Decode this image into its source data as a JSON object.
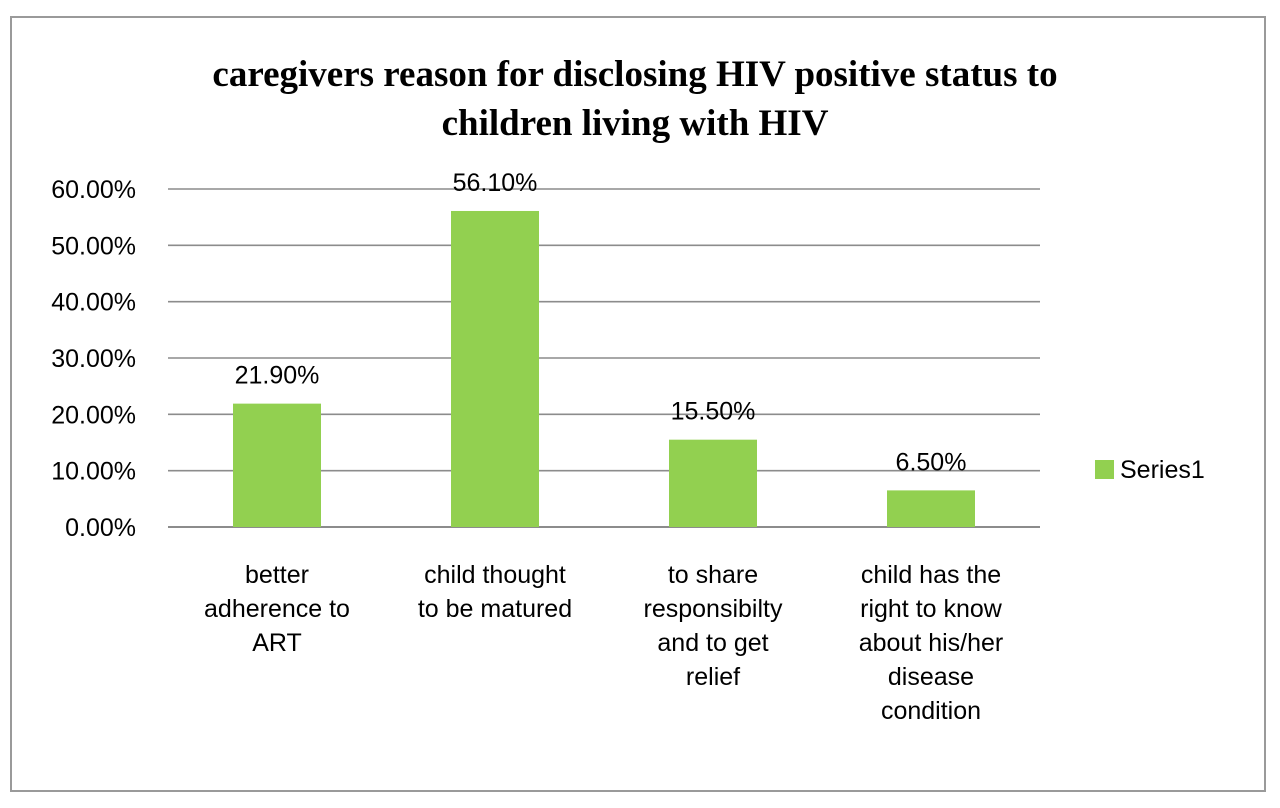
{
  "chart_data": {
    "type": "bar",
    "title": "caregivers reason for disclosing HIV positive status to children living with HIV",
    "title_lines": [
      "caregivers reason for disclosing HIV positive status to",
      "children living with HIV"
    ],
    "xlabel": "",
    "ylabel": "",
    "ylim": [
      0,
      0.6
    ],
    "y_ticks": [
      "0.00%",
      "10.00%",
      "20.00%",
      "30.00%",
      "40.00%",
      "50.00%",
      "60.00%"
    ],
    "grid": true,
    "legend_position": "right",
    "bar_color": "#92d050",
    "categories": [
      "better adherence to ART",
      "child thought to be matured",
      "to share responsibilty and to get relief",
      "child has the right to know about his/her disease condition"
    ],
    "category_lines": [
      [
        "better",
        "adherence to",
        "ART"
      ],
      [
        "child thought",
        "to be matured"
      ],
      [
        "to share",
        "responsibilty",
        "and to get",
        "relief"
      ],
      [
        "child has the",
        "right to know",
        "about his/her",
        "disease",
        "condition"
      ]
    ],
    "series": [
      {
        "name": "Series1",
        "values": [
          0.219,
          0.561,
          0.155,
          0.065
        ],
        "labels": [
          "21.90%",
          "56.10%",
          "15.50%",
          "6.50%"
        ]
      }
    ]
  }
}
